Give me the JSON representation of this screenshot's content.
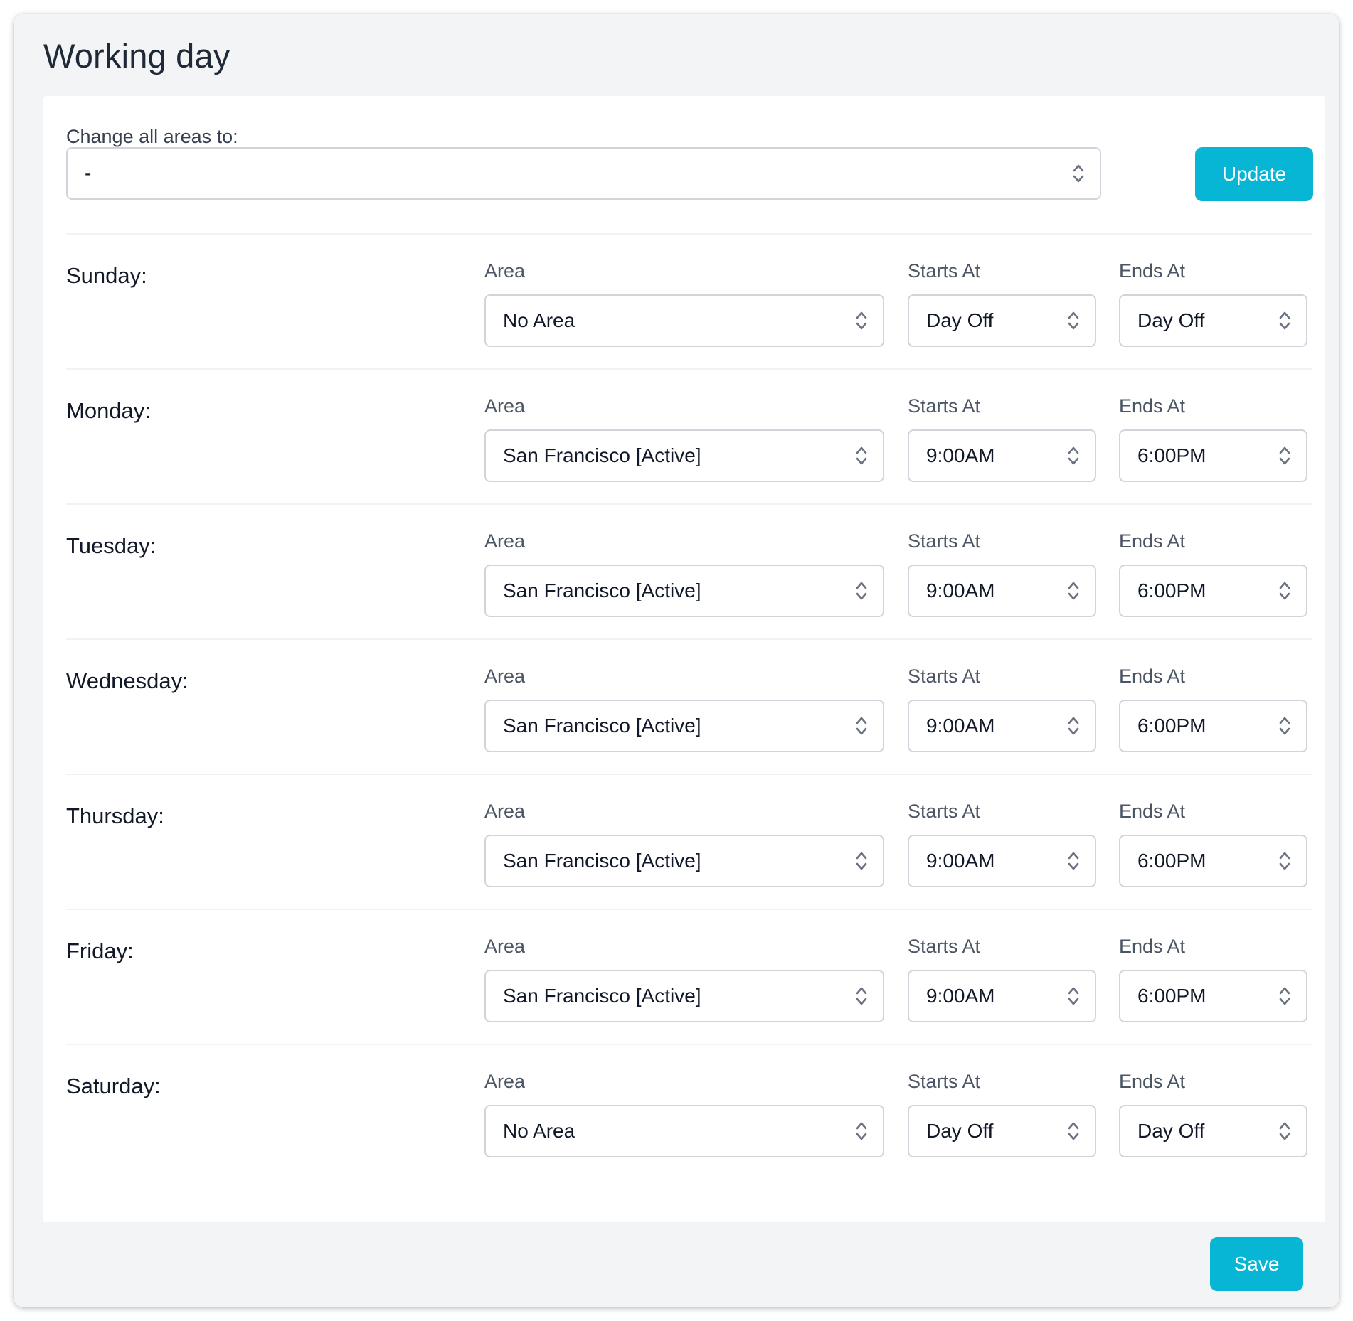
{
  "title": "Working day",
  "change_all": {
    "label": "Change all areas to:",
    "value": "-",
    "button": "Update"
  },
  "column_labels": {
    "area": "Area",
    "starts": "Starts At",
    "ends": "Ends At"
  },
  "days": [
    {
      "label": "Sunday:",
      "area": "No Area",
      "starts": "Day Off",
      "ends": "Day Off"
    },
    {
      "label": "Monday:",
      "area": "San Francisco [Active]",
      "starts": "9:00AM",
      "ends": "6:00PM"
    },
    {
      "label": "Tuesday:",
      "area": "San Francisco [Active]",
      "starts": "9:00AM",
      "ends": "6:00PM"
    },
    {
      "label": "Wednesday:",
      "area": "San Francisco [Active]",
      "starts": "9:00AM",
      "ends": "6:00PM"
    },
    {
      "label": "Thursday:",
      "area": "San Francisco [Active]",
      "starts": "9:00AM",
      "ends": "6:00PM"
    },
    {
      "label": "Friday:",
      "area": "San Francisco [Active]",
      "starts": "9:00AM",
      "ends": "6:00PM"
    },
    {
      "label": "Saturday:",
      "area": "No Area",
      "starts": "Day Off",
      "ends": "Day Off"
    }
  ],
  "save_button": "Save",
  "colors": {
    "accent": "#06b6d4",
    "background": "#f3f4f6",
    "card": "#ffffff",
    "border": "#d1d5db"
  },
  "icons": {
    "select_indicator": "chevron-up-down-icon"
  }
}
